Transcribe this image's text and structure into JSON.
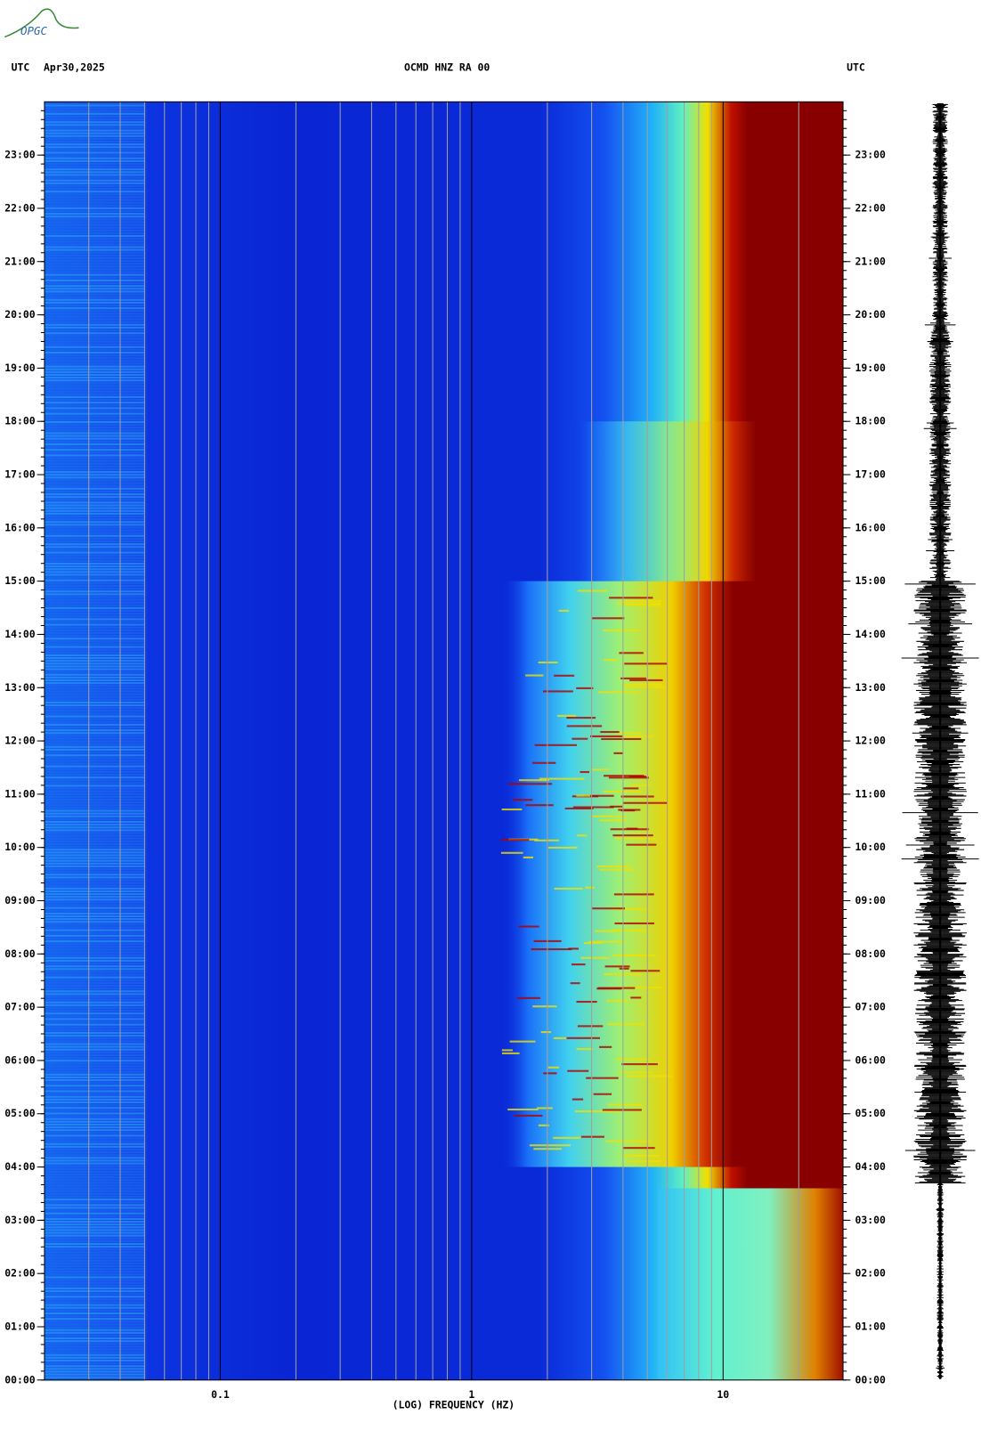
{
  "logo": "OPGC",
  "chart_data": {
    "type": "spectrogram",
    "title": "OCMD HNZ RA 00",
    "date": "Apr30,2025",
    "left_axis_label": "UTC",
    "right_axis_label": "UTC",
    "x_label": "(LOG) FREQUENCY (HZ)",
    "x_scale": "log",
    "xlim": [
      0.02,
      30
    ],
    "xticks": [
      0.1,
      1,
      10
    ],
    "ylim": [
      0,
      24
    ],
    "yticks": [
      {
        "value": 0,
        "label": "00:00"
      },
      {
        "value": 1,
        "label": "01:00"
      },
      {
        "value": 2,
        "label": "02:00"
      },
      {
        "value": 3,
        "label": "03:00"
      },
      {
        "value": 4,
        "label": "04:00"
      },
      {
        "value": 5,
        "label": "05:00"
      },
      {
        "value": 6,
        "label": "06:00"
      },
      {
        "value": 7,
        "label": "07:00"
      },
      {
        "value": 8,
        "label": "08:00"
      },
      {
        "value": 9,
        "label": "09:00"
      },
      {
        "value": 10,
        "label": "10:00"
      },
      {
        "value": 11,
        "label": "11:00"
      },
      {
        "value": 12,
        "label": "12:00"
      },
      {
        "value": 13,
        "label": "13:00"
      },
      {
        "value": 14,
        "label": "14:00"
      },
      {
        "value": 15,
        "label": "15:00"
      },
      {
        "value": 16,
        "label": "16:00"
      },
      {
        "value": 17,
        "label": "17:00"
      },
      {
        "value": 18,
        "label": "18:00"
      },
      {
        "value": 19,
        "label": "19:00"
      },
      {
        "value": 20,
        "label": "20:00"
      },
      {
        "value": 21,
        "label": "21:00"
      },
      {
        "value": 22,
        "label": "22:00"
      },
      {
        "value": 23,
        "label": "23:00"
      }
    ],
    "grid": true
  }
}
